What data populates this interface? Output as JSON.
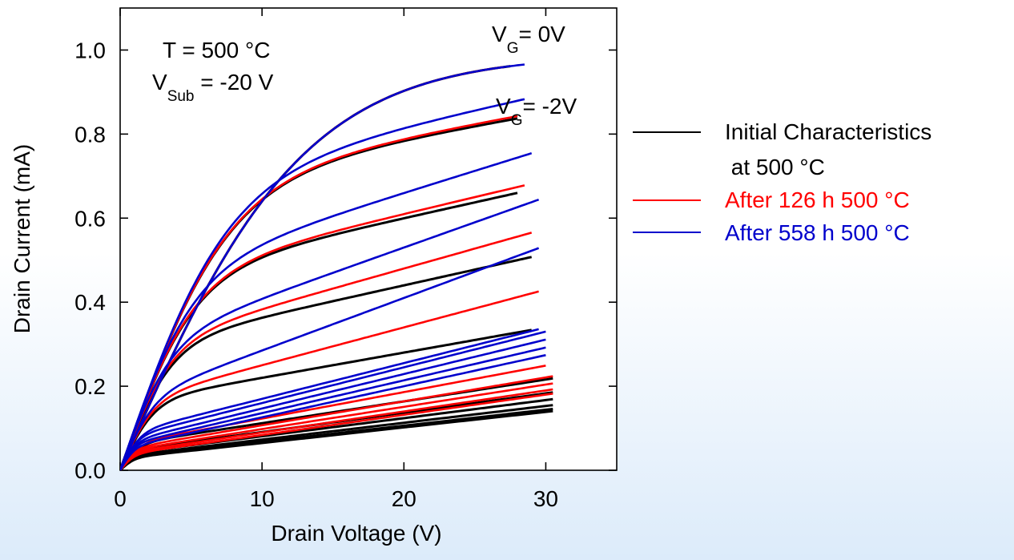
{
  "chart_data": {
    "type": "line",
    "xlabel": "Drain Voltage (V)",
    "ylabel": "Drain Current (mA)",
    "xlim": [
      0,
      35
    ],
    "ylim": [
      0,
      1.1
    ],
    "xticks": [
      "0",
      "10",
      "20",
      "30"
    ],
    "yticks": [
      "0.0",
      "0.2",
      "0.4",
      "0.6",
      "0.8",
      "1.0"
    ],
    "grid": false,
    "legend_position": "right",
    "annotations": {
      "temperature": "T = 500 °C",
      "vsub_main": "V",
      "vsub_sub": "Sub",
      "vsub_value": " = -20 V",
      "vg0_main": "V",
      "vg0_sub": "G",
      "vg0_value": "= 0V",
      "vg2_main": "V",
      "vg2_sub": "G",
      "vg2_value": "= -2V"
    },
    "legend": [
      {
        "label_line1": "Initial Characteristics",
        "label_line2": " at 500 °C",
        "color": "#000000"
      },
      {
        "label_line1": "After 126 h 500 °C",
        "label_line2": "",
        "color": "#ff0000"
      },
      {
        "label_line1": "After 558 h 500 °C",
        "label_line2": "",
        "color": "#0000cc"
      }
    ],
    "series": [
      {
        "name": "Initial Characteristics at 500 °C",
        "color": "#000000",
        "curves": [
          {
            "isat": 0.99,
            "sat": 0.0,
            "k": 13,
            "xmax": 27.5
          },
          {
            "isat": 0.67,
            "sat": 0.006,
            "k": 7.5,
            "xmax": 28
          },
          {
            "isat": 0.45,
            "sat": 0.0075,
            "k": 5.2,
            "xmax": 28
          },
          {
            "isat": 0.29,
            "sat": 0.0075,
            "k": 3.6,
            "xmax": 29
          },
          {
            "isat": 0.16,
            "sat": 0.006,
            "k": 2.4,
            "xmax": 29
          },
          {
            "isat": 0.06,
            "sat": 0.0052,
            "k": 1.4,
            "xmax": 30.5
          },
          {
            "isat": 0.045,
            "sat": 0.0046,
            "k": 1.2,
            "xmax": 30.5
          },
          {
            "isat": 0.038,
            "sat": 0.0043,
            "k": 1.1,
            "xmax": 30.5
          },
          {
            "isat": 0.033,
            "sat": 0.004,
            "k": 1.0,
            "xmax": 30.5
          },
          {
            "isat": 0.03,
            "sat": 0.0038,
            "k": 1.0,
            "xmax": 30.5
          },
          {
            "isat": 0.028,
            "sat": 0.0037,
            "k": 1.0,
            "xmax": 30.5
          }
        ]
      },
      {
        "name": "After 126 h 500 °C",
        "color": "#ff0000",
        "curves": [
          {
            "isat": 0.99,
            "sat": 0.0,
            "k": 13,
            "xmax": 27
          },
          {
            "isat": 0.67,
            "sat": 0.0062,
            "k": 7.5,
            "xmax": 28
          },
          {
            "isat": 0.45,
            "sat": 0.008,
            "k": 5.2,
            "xmax": 28.5
          },
          {
            "isat": 0.29,
            "sat": 0.0095,
            "k": 3.6,
            "xmax": 29
          },
          {
            "isat": 0.16,
            "sat": 0.009,
            "k": 2.4,
            "xmax": 29.5
          },
          {
            "isat": 0.06,
            "sat": 0.0063,
            "k": 1.4,
            "xmax": 30
          },
          {
            "isat": 0.05,
            "sat": 0.0057,
            "k": 1.2,
            "xmax": 30.5
          },
          {
            "isat": 0.045,
            "sat": 0.0053,
            "k": 1.1,
            "xmax": 30.5
          },
          {
            "isat": 0.04,
            "sat": 0.005,
            "k": 1.0,
            "xmax": 30.5
          },
          {
            "isat": 0.036,
            "sat": 0.0048,
            "k": 1.0,
            "xmax": 30.5
          }
        ]
      },
      {
        "name": "After 558 h 500 °C",
        "color": "#0000cc",
        "curves": [
          {
            "isat": 0.99,
            "sat": 0.0,
            "k": 13,
            "xmax": 28.5
          },
          {
            "isat": 0.67,
            "sat": 0.0075,
            "k": 7.5,
            "xmax": 28.5
          },
          {
            "isat": 0.45,
            "sat": 0.0105,
            "k": 5.2,
            "xmax": 29
          },
          {
            "isat": 0.29,
            "sat": 0.012,
            "k": 3.6,
            "xmax": 29.5
          },
          {
            "isat": 0.16,
            "sat": 0.0125,
            "k": 2.4,
            "xmax": 29.5
          },
          {
            "isat": 0.085,
            "sat": 0.0085,
            "k": 1.4,
            "xmax": 29.5
          },
          {
            "isat": 0.075,
            "sat": 0.0085,
            "k": 1.2,
            "xmax": 30
          },
          {
            "isat": 0.065,
            "sat": 0.0082,
            "k": 1.1,
            "xmax": 30
          },
          {
            "isat": 0.058,
            "sat": 0.0078,
            "k": 1.0,
            "xmax": 30
          },
          {
            "isat": 0.052,
            "sat": 0.0074,
            "k": 1.0,
            "xmax": 30
          }
        ]
      }
    ]
  }
}
